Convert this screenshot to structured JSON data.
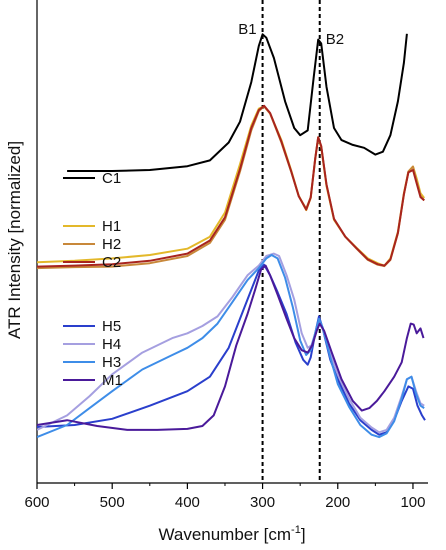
{
  "chart_data": {
    "type": "line",
    "title": "",
    "xlabel": "Wavenumber [cm",
    "xlabel_sup": "-1",
    "xlabel_close": "]",
    "ylabel": "ATR Intensity [normalized]",
    "x_reversed": true,
    "xlim": [
      600,
      80
    ],
    "x_ticks": [
      600,
      500,
      400,
      300,
      200,
      100
    ],
    "y_ticks_shown": false,
    "grid": false,
    "y_units": "normalized, vertically offset stacks (0 = bottom, 1 = top)",
    "ylim": [
      0,
      1
    ],
    "reference_lines": [
      {
        "name": "B1",
        "x": 300,
        "style": "dashed"
      },
      {
        "name": "B2",
        "x": 224,
        "style": "dashed"
      }
    ],
    "legend_groups": [
      {
        "placement": "upper-left",
        "entries": [
          "C1"
        ]
      },
      {
        "placement": "middle-left",
        "entries": [
          "H1",
          "H2",
          "C2"
        ]
      },
      {
        "placement": "lower-left",
        "entries": [
          "H5",
          "H4",
          "H3",
          "M1"
        ]
      }
    ],
    "series": [
      {
        "name": "C1",
        "color": "#000000",
        "points": [
          [
            560,
            0.646
          ],
          [
            500,
            0.646
          ],
          [
            450,
            0.648
          ],
          [
            400,
            0.656
          ],
          [
            370,
            0.668
          ],
          [
            345,
            0.705
          ],
          [
            330,
            0.748
          ],
          [
            315,
            0.83
          ],
          [
            305,
            0.905
          ],
          [
            300,
            0.929
          ],
          [
            295,
            0.922
          ],
          [
            285,
            0.88
          ],
          [
            270,
            0.79
          ],
          [
            258,
            0.735
          ],
          [
            250,
            0.72
          ],
          [
            240,
            0.73
          ],
          [
            232,
            0.84
          ],
          [
            226,
            0.918
          ],
          [
            222,
            0.91
          ],
          [
            215,
            0.82
          ],
          [
            205,
            0.735
          ],
          [
            195,
            0.71
          ],
          [
            180,
            0.7
          ],
          [
            165,
            0.694
          ],
          [
            150,
            0.68
          ],
          [
            140,
            0.686
          ],
          [
            130,
            0.72
          ],
          [
            120,
            0.79
          ],
          [
            112,
            0.87
          ],
          [
            108,
            0.93
          ]
        ]
      },
      {
        "name": "H1",
        "color": "#e3b82a",
        "points": [
          [
            600,
            0.457
          ],
          [
            550,
            0.46
          ],
          [
            500,
            0.465
          ],
          [
            450,
            0.472
          ],
          [
            400,
            0.485
          ],
          [
            370,
            0.51
          ],
          [
            350,
            0.56
          ],
          [
            330,
            0.66
          ],
          [
            315,
            0.74
          ],
          [
            305,
            0.775
          ],
          [
            298,
            0.78
          ],
          [
            290,
            0.765
          ],
          [
            275,
            0.71
          ],
          [
            262,
            0.648
          ],
          [
            252,
            0.595
          ],
          [
            242,
            0.565
          ],
          [
            236,
            0.59
          ],
          [
            230,
            0.67
          ],
          [
            226,
            0.715
          ],
          [
            222,
            0.695
          ],
          [
            215,
            0.615
          ],
          [
            205,
            0.545
          ],
          [
            190,
            0.51
          ],
          [
            175,
            0.487
          ],
          [
            160,
            0.465
          ],
          [
            147,
            0.455
          ],
          [
            138,
            0.45
          ],
          [
            130,
            0.465
          ],
          [
            120,
            0.52
          ],
          [
            112,
            0.6
          ],
          [
            106,
            0.645
          ],
          [
            100,
            0.655
          ],
          [
            95,
            0.63
          ],
          [
            90,
            0.6
          ],
          [
            85,
            0.59
          ]
        ]
      },
      {
        "name": "H2",
        "color": "#c8883a",
        "points": [
          [
            600,
            0.445
          ],
          [
            550,
            0.447
          ],
          [
            500,
            0.448
          ],
          [
            450,
            0.455
          ],
          [
            400,
            0.47
          ],
          [
            370,
            0.497
          ],
          [
            350,
            0.545
          ],
          [
            330,
            0.645
          ],
          [
            315,
            0.73
          ],
          [
            305,
            0.77
          ],
          [
            298,
            0.78
          ],
          [
            290,
            0.765
          ],
          [
            275,
            0.705
          ],
          [
            262,
            0.645
          ],
          [
            252,
            0.594
          ],
          [
            242,
            0.568
          ],
          [
            236,
            0.592
          ],
          [
            230,
            0.672
          ],
          [
            226,
            0.716
          ],
          [
            222,
            0.697
          ],
          [
            215,
            0.617
          ],
          [
            205,
            0.546
          ],
          [
            190,
            0.51
          ],
          [
            175,
            0.485
          ],
          [
            160,
            0.462
          ],
          [
            147,
            0.452
          ],
          [
            138,
            0.449
          ],
          [
            130,
            0.462
          ],
          [
            120,
            0.517
          ],
          [
            112,
            0.597
          ],
          [
            106,
            0.645
          ],
          [
            100,
            0.655
          ],
          [
            95,
            0.625
          ],
          [
            90,
            0.595
          ],
          [
            85,
            0.585
          ]
        ]
      },
      {
        "name": "C2",
        "color": "#a8241e",
        "points": [
          [
            600,
            0.448
          ],
          [
            550,
            0.45
          ],
          [
            500,
            0.453
          ],
          [
            450,
            0.46
          ],
          [
            400,
            0.475
          ],
          [
            370,
            0.502
          ],
          [
            350,
            0.55
          ],
          [
            330,
            0.65
          ],
          [
            315,
            0.735
          ],
          [
            305,
            0.772
          ],
          [
            298,
            0.781
          ],
          [
            290,
            0.766
          ],
          [
            275,
            0.707
          ],
          [
            262,
            0.646
          ],
          [
            252,
            0.594
          ],
          [
            242,
            0.566
          ],
          [
            236,
            0.591
          ],
          [
            230,
            0.671
          ],
          [
            226,
            0.716
          ],
          [
            222,
            0.698
          ],
          [
            215,
            0.618
          ],
          [
            205,
            0.547
          ],
          [
            190,
            0.51
          ],
          [
            175,
            0.486
          ],
          [
            160,
            0.463
          ],
          [
            147,
            0.453
          ],
          [
            138,
            0.45
          ],
          [
            130,
            0.463
          ],
          [
            120,
            0.518
          ],
          [
            112,
            0.598
          ],
          [
            106,
            0.643
          ],
          [
            100,
            0.648
          ],
          [
            95,
            0.62
          ],
          [
            90,
            0.592
          ],
          [
            85,
            0.585
          ]
        ]
      },
      {
        "name": "H5",
        "color": "#2a3fcc",
        "points": [
          [
            600,
            0.116
          ],
          [
            550,
            0.12
          ],
          [
            500,
            0.133
          ],
          [
            450,
            0.16
          ],
          [
            400,
            0.19
          ],
          [
            370,
            0.22
          ],
          [
            345,
            0.28
          ],
          [
            330,
            0.34
          ],
          [
            315,
            0.4
          ],
          [
            305,
            0.44
          ],
          [
            298,
            0.452
          ],
          [
            290,
            0.43
          ],
          [
            280,
            0.395
          ],
          [
            268,
            0.35
          ],
          [
            256,
            0.29
          ],
          [
            246,
            0.255
          ],
          [
            240,
            0.245
          ],
          [
            236,
            0.26
          ],
          [
            230,
            0.31
          ],
          [
            225,
            0.345
          ],
          [
            220,
            0.32
          ],
          [
            210,
            0.255
          ],
          [
            200,
            0.215
          ],
          [
            185,
            0.165
          ],
          [
            170,
            0.13
          ],
          [
            155,
            0.11
          ],
          [
            145,
            0.1
          ],
          [
            135,
            0.105
          ],
          [
            125,
            0.13
          ],
          [
            115,
            0.17
          ],
          [
            106,
            0.2
          ],
          [
            100,
            0.195
          ],
          [
            94,
            0.16
          ],
          [
            88,
            0.14
          ],
          [
            84,
            0.13
          ]
        ]
      },
      {
        "name": "H4",
        "color": "#a59fe0",
        "points": [
          [
            600,
            0.11
          ],
          [
            560,
            0.14
          ],
          [
            530,
            0.18
          ],
          [
            500,
            0.225
          ],
          [
            460,
            0.27
          ],
          [
            420,
            0.3
          ],
          [
            400,
            0.31
          ],
          [
            380,
            0.325
          ],
          [
            360,
            0.345
          ],
          [
            340,
            0.385
          ],
          [
            320,
            0.43
          ],
          [
            305,
            0.45
          ],
          [
            295,
            0.47
          ],
          [
            285,
            0.475
          ],
          [
            278,
            0.47
          ],
          [
            268,
            0.43
          ],
          [
            258,
            0.38
          ],
          [
            248,
            0.31
          ],
          [
            240,
            0.28
          ],
          [
            235,
            0.285
          ],
          [
            230,
            0.31
          ],
          [
            225,
            0.335
          ],
          [
            220,
            0.318
          ],
          [
            210,
            0.27
          ],
          [
            200,
            0.225
          ],
          [
            185,
            0.175
          ],
          [
            170,
            0.135
          ],
          [
            155,
            0.115
          ],
          [
            145,
            0.105
          ],
          [
            135,
            0.11
          ],
          [
            125,
            0.135
          ],
          [
            115,
            0.18
          ],
          [
            108,
            0.215
          ],
          [
            102,
            0.22
          ],
          [
            96,
            0.19
          ],
          [
            90,
            0.165
          ],
          [
            85,
            0.16
          ]
        ]
      },
      {
        "name": "H3",
        "color": "#3e8de8",
        "points": [
          [
            600,
            0.095
          ],
          [
            560,
            0.12
          ],
          [
            530,
            0.155
          ],
          [
            500,
            0.19
          ],
          [
            460,
            0.235
          ],
          [
            420,
            0.265
          ],
          [
            400,
            0.28
          ],
          [
            380,
            0.3
          ],
          [
            360,
            0.33
          ],
          [
            340,
            0.375
          ],
          [
            320,
            0.42
          ],
          [
            305,
            0.445
          ],
          [
            295,
            0.465
          ],
          [
            288,
            0.472
          ],
          [
            280,
            0.465
          ],
          [
            270,
            0.425
          ],
          [
            260,
            0.365
          ],
          [
            250,
            0.295
          ],
          [
            242,
            0.265
          ],
          [
            236,
            0.275
          ],
          [
            230,
            0.31
          ],
          [
            225,
            0.34
          ],
          [
            220,
            0.322
          ],
          [
            210,
            0.26
          ],
          [
            200,
            0.205
          ],
          [
            185,
            0.158
          ],
          [
            170,
            0.12
          ],
          [
            155,
            0.1
          ],
          [
            145,
            0.095
          ],
          [
            135,
            0.103
          ],
          [
            125,
            0.128
          ],
          [
            115,
            0.175
          ],
          [
            108,
            0.215
          ],
          [
            102,
            0.22
          ],
          [
            96,
            0.185
          ],
          [
            90,
            0.16
          ],
          [
            85,
            0.155
          ]
        ]
      },
      {
        "name": "M1",
        "color": "#4a1a9a",
        "points": [
          [
            600,
            0.12
          ],
          [
            560,
            0.13
          ],
          [
            520,
            0.118
          ],
          [
            480,
            0.11
          ],
          [
            440,
            0.11
          ],
          [
            400,
            0.112
          ],
          [
            380,
            0.118
          ],
          [
            365,
            0.14
          ],
          [
            350,
            0.2
          ],
          [
            335,
            0.285
          ],
          [
            320,
            0.35
          ],
          [
            310,
            0.4
          ],
          [
            302,
            0.442
          ],
          [
            296,
            0.45
          ],
          [
            290,
            0.43
          ],
          [
            280,
            0.39
          ],
          [
            268,
            0.34
          ],
          [
            258,
            0.3
          ],
          [
            248,
            0.275
          ],
          [
            240,
            0.27
          ],
          [
            234,
            0.285
          ],
          [
            228,
            0.315
          ],
          [
            224,
            0.33
          ],
          [
            218,
            0.315
          ],
          [
            208,
            0.27
          ],
          [
            195,
            0.215
          ],
          [
            180,
            0.17
          ],
          [
            168,
            0.15
          ],
          [
            158,
            0.155
          ],
          [
            148,
            0.17
          ],
          [
            138,
            0.19
          ],
          [
            125,
            0.22
          ],
          [
            115,
            0.25
          ],
          [
            108,
            0.3
          ],
          [
            103,
            0.33
          ],
          [
            99,
            0.328
          ],
          [
            95,
            0.31
          ],
          [
            90,
            0.32
          ],
          [
            86,
            0.3
          ]
        ]
      }
    ]
  }
}
